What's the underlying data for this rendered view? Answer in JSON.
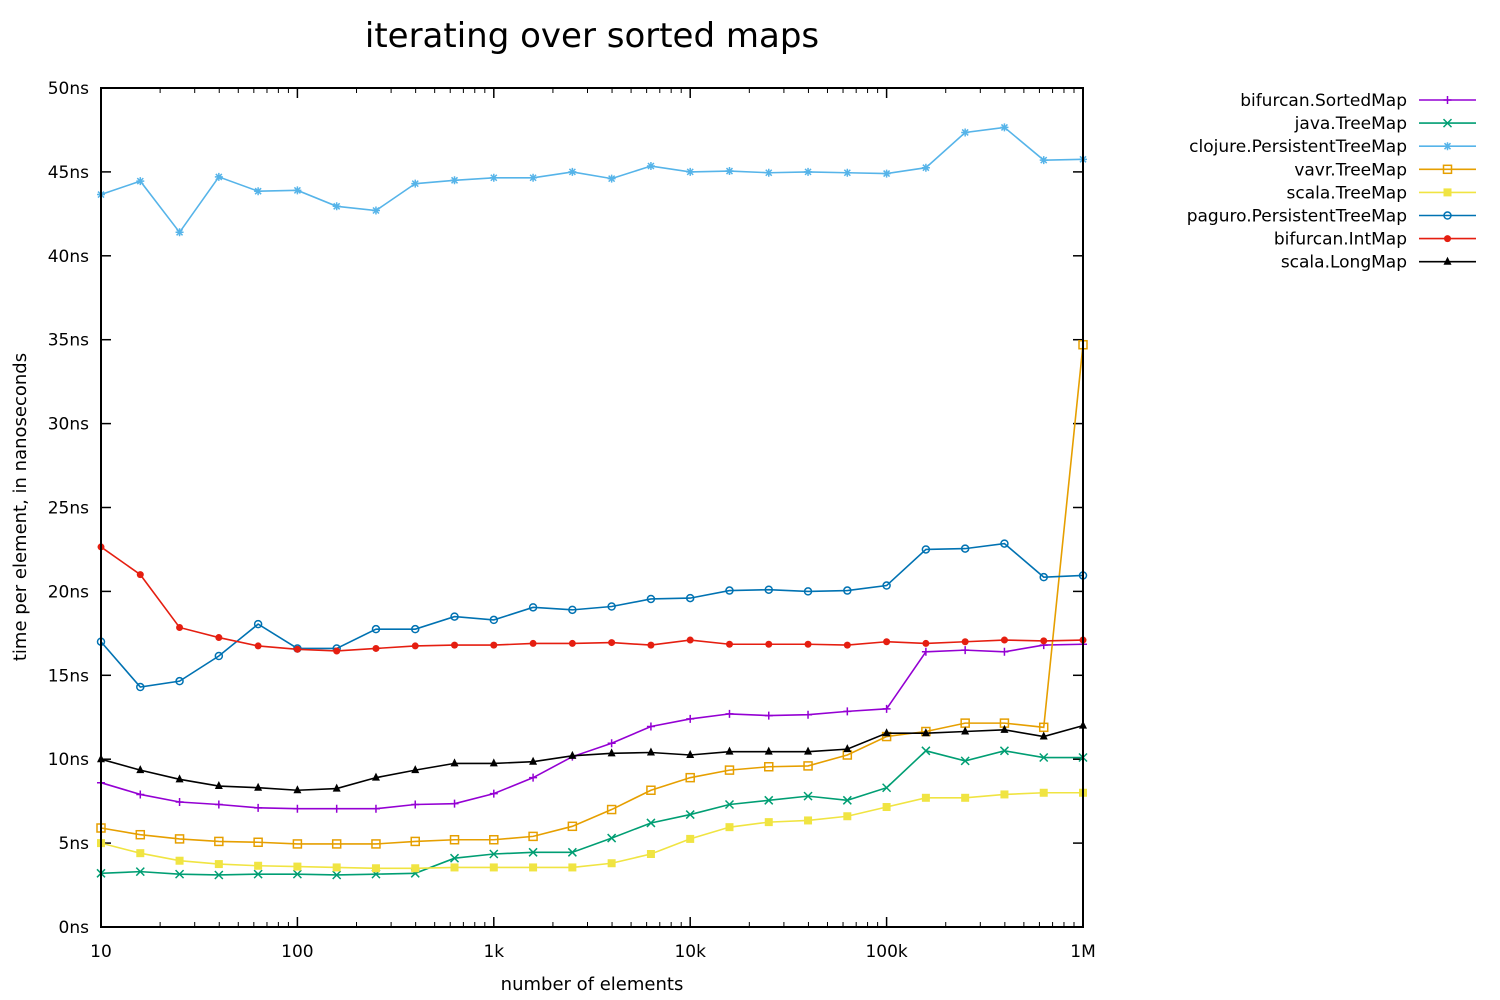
{
  "chart_data": {
    "type": "line",
    "title": "iterating over sorted maps",
    "xlabel": "number of elements",
    "ylabel": "time per element, in nanoseconds",
    "xscale": "log",
    "xlim": [
      10,
      1000000
    ],
    "ylim": [
      0,
      50
    ],
    "xticks": [
      {
        "value": 10,
        "label": "10"
      },
      {
        "value": 100,
        "label": "100"
      },
      {
        "value": 1000,
        "label": "1k"
      },
      {
        "value": 10000,
        "label": "10k"
      },
      {
        "value": 100000,
        "label": "100k"
      },
      {
        "value": 1000000,
        "label": "1M"
      }
    ],
    "yticks": [
      {
        "value": 0,
        "label": "0ns"
      },
      {
        "value": 5,
        "label": "5ns"
      },
      {
        "value": 10,
        "label": "10ns"
      },
      {
        "value": 15,
        "label": "15ns"
      },
      {
        "value": 20,
        "label": "20ns"
      },
      {
        "value": 25,
        "label": "25ns"
      },
      {
        "value": 30,
        "label": "30ns"
      },
      {
        "value": 35,
        "label": "35ns"
      },
      {
        "value": 40,
        "label": "40ns"
      },
      {
        "value": 45,
        "label": "45ns"
      },
      {
        "value": 50,
        "label": "50ns"
      }
    ],
    "legend_position": "top-right, outside plot",
    "x": [
      10,
      15.85,
      25.12,
      39.81,
      63.1,
      100,
      158.5,
      251.2,
      398.1,
      631,
      1000,
      1585,
      2512,
      3981,
      6310,
      10000,
      15850,
      25120,
      39810,
      63100,
      100000,
      158500,
      251200,
      398100,
      631000,
      1000000
    ],
    "series": [
      {
        "name": "bifurcan.SortedMap",
        "color": "#9400d3",
        "marker": "plus",
        "values": [
          8.6,
          7.9,
          7.45,
          7.3,
          7.1,
          7.05,
          7.05,
          7.05,
          7.3,
          7.35,
          7.95,
          8.9,
          10.15,
          10.95,
          11.95,
          12.4,
          12.7,
          12.6,
          12.65,
          12.85,
          13.0,
          16.4,
          16.5,
          16.4,
          16.8,
          16.85
        ]
      },
      {
        "name": "java.TreeMap",
        "color": "#009e73",
        "marker": "cross",
        "values": [
          3.2,
          3.3,
          3.15,
          3.1,
          3.15,
          3.15,
          3.1,
          3.15,
          3.2,
          4.1,
          4.35,
          4.45,
          4.45,
          5.3,
          6.2,
          6.7,
          7.3,
          7.55,
          7.8,
          7.55,
          8.3,
          10.5,
          9.9,
          10.5,
          10.1,
          10.1
        ]
      },
      {
        "name": "clojure.PersistentTreeMap",
        "color": "#56b4e9",
        "marker": "star",
        "values": [
          43.65,
          44.45,
          41.4,
          44.7,
          43.85,
          43.9,
          42.95,
          42.7,
          44.3,
          44.5,
          44.65,
          44.65,
          45.0,
          44.6,
          45.35,
          45.0,
          45.05,
          44.95,
          45.0,
          44.95,
          44.9,
          45.25,
          47.35,
          47.65,
          45.7,
          45.75
        ]
      },
      {
        "name": "vavr.TreeMap",
        "color": "#e69f00",
        "marker": "square-open",
        "values": [
          5.9,
          5.5,
          5.25,
          5.1,
          5.05,
          4.95,
          4.95,
          4.95,
          5.1,
          5.2,
          5.2,
          5.4,
          6.0,
          7.0,
          8.15,
          8.9,
          9.35,
          9.55,
          9.6,
          10.25,
          11.35,
          11.65,
          12.15,
          12.15,
          11.9,
          34.7
        ]
      },
      {
        "name": "scala.TreeMap",
        "color": "#f0e442",
        "marker": "square-filled",
        "values": [
          5.0,
          4.4,
          3.95,
          3.75,
          3.65,
          3.6,
          3.55,
          3.5,
          3.5,
          3.55,
          3.55,
          3.55,
          3.55,
          3.8,
          4.35,
          5.25,
          5.95,
          6.25,
          6.35,
          6.6,
          7.15,
          7.7,
          7.7,
          7.9,
          8.0,
          8.0
        ]
      },
      {
        "name": "paguro.PersistentTreeMap",
        "color": "#0072b2",
        "marker": "circle-open",
        "values": [
          17.0,
          14.3,
          14.65,
          16.15,
          18.05,
          16.6,
          16.6,
          17.75,
          17.75,
          18.5,
          18.3,
          19.05,
          18.9,
          19.1,
          19.55,
          19.6,
          20.05,
          20.1,
          20.0,
          20.05,
          20.35,
          22.5,
          22.55,
          22.85,
          20.85,
          20.95
        ]
      },
      {
        "name": "bifurcan.IntMap",
        "color": "#e51e10",
        "marker": "circle-filled",
        "values": [
          22.65,
          21.0,
          17.85,
          17.25,
          16.75,
          16.55,
          16.45,
          16.6,
          16.75,
          16.8,
          16.8,
          16.9,
          16.9,
          16.95,
          16.8,
          17.1,
          16.85,
          16.85,
          16.85,
          16.8,
          17.0,
          16.9,
          17.0,
          17.1,
          17.05,
          17.1
        ]
      },
      {
        "name": "scala.LongMap",
        "color": "#000000",
        "marker": "triangle",
        "values": [
          10.0,
          9.35,
          8.8,
          8.4,
          8.3,
          8.15,
          8.25,
          8.9,
          9.35,
          9.75,
          9.75,
          9.85,
          10.2,
          10.35,
          10.4,
          10.25,
          10.45,
          10.45,
          10.45,
          10.6,
          11.55,
          11.55,
          11.65,
          11.75,
          11.35,
          12.0
        ]
      }
    ]
  }
}
